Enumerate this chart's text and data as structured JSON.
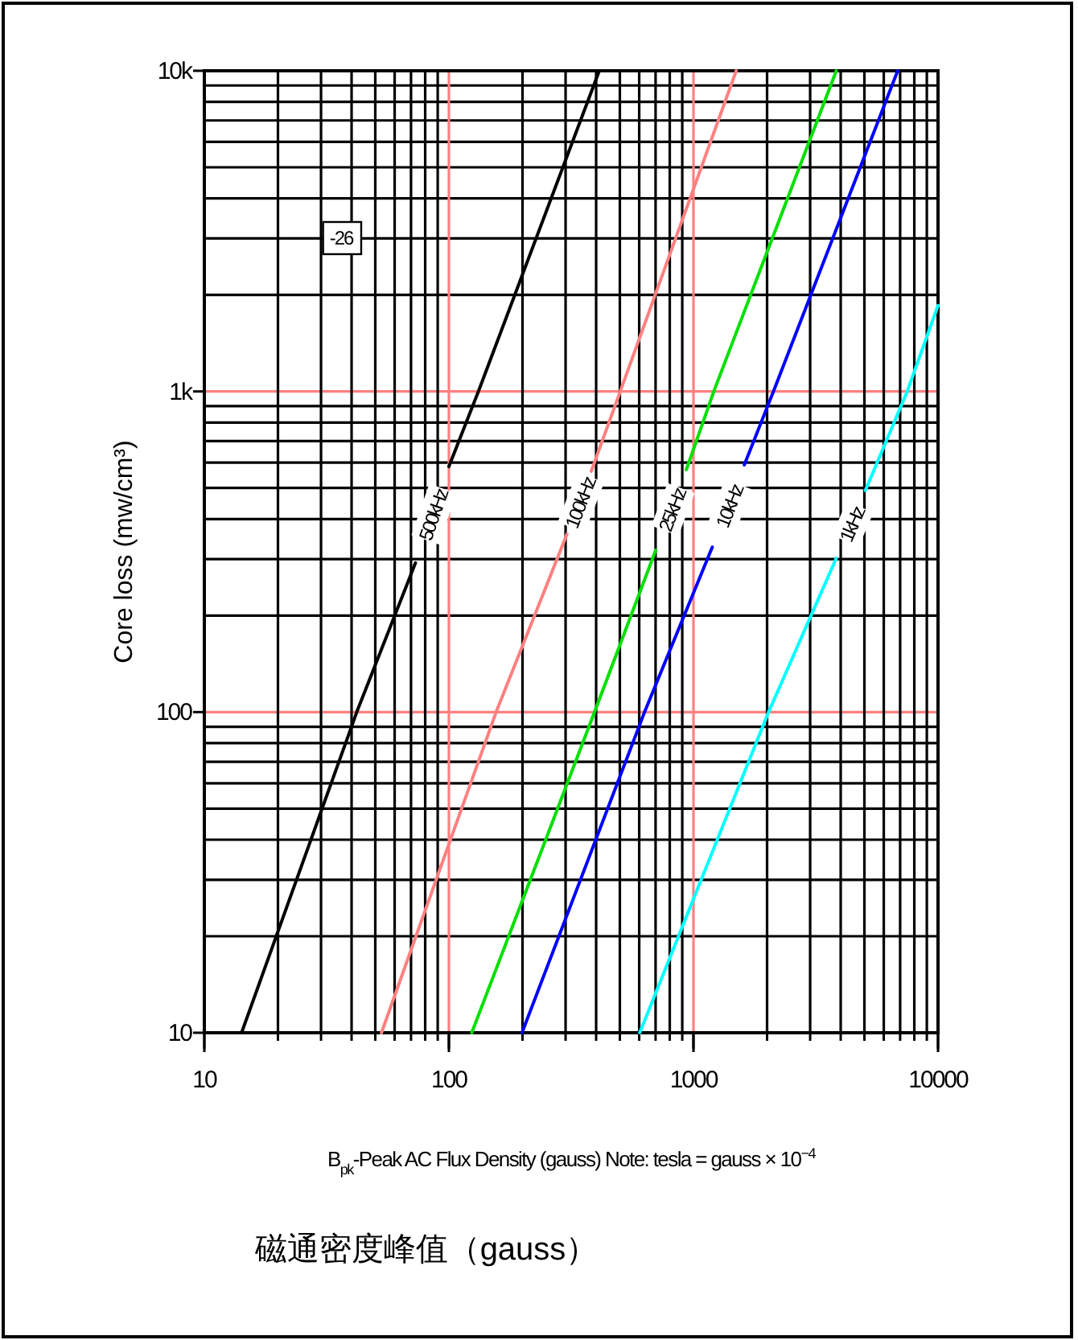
{
  "chart_data": {
    "type": "line",
    "xlabel": "B$_{pk}$-Peak AC Flux Density (gauss) Note: tesla = gauss × 10$^{−4}$",
    "ylabel": "Core loss (mw/cm³)",
    "annotations": [
      "-26",
      "磁通密度峰值（gauss）"
    ],
    "log": "xy",
    "grid": true,
    "legend": false,
    "marker": "none",
    "line_style": "solid",
    "xlim": [
      10,
      10000
    ],
    "xticks": [
      10,
      100,
      1000,
      10000
    ],
    "ylim": [
      10,
      10000
    ],
    "yticks": [
      10,
      100,
      {
        "value": 1000,
        "label": "1k"
      },
      {
        "value": 10000,
        "label": "10k"
      }
    ],
    "series": [
      {
        "name": "500kHz",
        "color": "#000000",
        "x": [
          14.2,
          42,
          73,
          null,
          100,
          132,
          412
        ],
        "values": [
          10,
          100,
          292,
          null,
          583,
          1000,
          10000
        ]
      },
      {
        "name": "100kHz",
        "color": "#ff8080",
        "x": [
          53,
          156,
          304,
          null,
          382,
          502,
          1496
        ],
        "values": [
          10,
          100,
          359,
          null,
          564,
          1000,
          10000
        ]
      },
      {
        "name": "25kHz",
        "color": "#00e000",
        "x": [
          124,
          394,
          701,
          null,
          935,
          1211,
          3838
        ],
        "values": [
          10,
          100,
          320,
          null,
          570,
          1000,
          10000
        ]
      },
      {
        "name": "10kHz",
        "color": "#0000ff",
        "x": [
          199,
          631,
          1194,
          null,
          1614,
          2123,
          6839
        ],
        "values": [
          10,
          100,
          327,
          null,
          590,
          1000,
          10000
        ]
      },
      {
        "name": "1kHz",
        "color": "#00ffff",
        "x": [
          603,
          2028,
          3838,
          null,
          5047,
          7482,
          10000
        ],
        "values": [
          10,
          100,
          302,
          null,
          491,
          1000,
          1854
        ]
      }
    ]
  }
}
